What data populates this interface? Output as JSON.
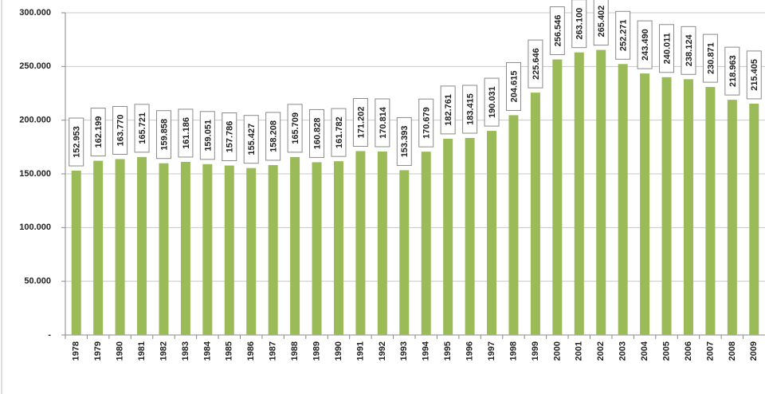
{
  "chart_data": {
    "type": "bar",
    "categories": [
      "1978",
      "1979",
      "1980",
      "1981",
      "1982",
      "1983",
      "1984",
      "1985",
      "1986",
      "1987",
      "1988",
      "1989",
      "1990",
      "1991",
      "1992",
      "1993",
      "1994",
      "1995",
      "1996",
      "1997",
      "1998",
      "1999",
      "2000",
      "2001",
      "2002",
      "2003",
      "2004",
      "2005",
      "2006",
      "2007",
      "2008",
      "2009"
    ],
    "values": [
      152953,
      162199,
      163770,
      165721,
      159858,
      161186,
      159051,
      157786,
      155427,
      158208,
      165709,
      160828,
      161782,
      171202,
      170814,
      153393,
      170679,
      182761,
      183415,
      190031,
      204615,
      225646,
      256546,
      263100,
      265402,
      252271,
      243490,
      240011,
      238124,
      230871,
      218963,
      215405
    ],
    "value_labels": [
      "152.953",
      "162.199",
      "163.770",
      "165.721",
      "159.858",
      "161.186",
      "159.051",
      "157.786",
      "155.427",
      "158.208",
      "165.709",
      "160.828",
      "161.782",
      "171.202",
      "170.814",
      "153.393",
      "170.679",
      "182.761",
      "183.415",
      "190.031",
      "204.615",
      "225.646",
      "256.546",
      "263.100",
      "265.402",
      "252.271",
      "243.490",
      "240.011",
      "238.124",
      "230.871",
      "218.963",
      "215.405"
    ],
    "color": "#9bbb59",
    "ylim": [
      0,
      300000
    ],
    "yticks": [
      {
        "value": 0,
        "label": "-"
      },
      {
        "value": 50000,
        "label": "50.000"
      },
      {
        "value": 100000,
        "label": "100.000"
      },
      {
        "value": 150000,
        "label": "150.000"
      },
      {
        "value": 200000,
        "label": "200.000"
      },
      {
        "value": 250000,
        "label": "250.000"
      },
      {
        "value": 300000,
        "label": "300.000"
      }
    ],
    "grid": true
  }
}
